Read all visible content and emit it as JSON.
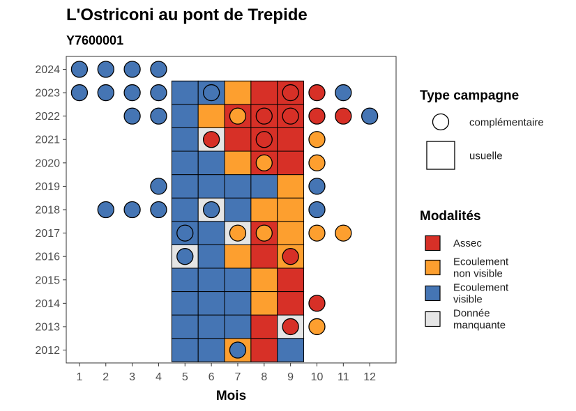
{
  "title": "L'Ostriconi au pont de Trepide",
  "subtitle": "Y7600001",
  "chart_data": {
    "type": "heatmap",
    "xlabel": "Mois",
    "x_ticks": [
      1,
      2,
      3,
      4,
      5,
      6,
      7,
      8,
      9,
      10,
      11,
      12
    ],
    "y_ticks": [
      2012,
      2013,
      2014,
      2015,
      2016,
      2017,
      2018,
      2019,
      2020,
      2021,
      2022,
      2023,
      2024
    ],
    "xlim": [
      0.5,
      13.0
    ],
    "ylim": [
      2011.45,
      2024.55
    ],
    "grid": false,
    "legend_position": "right",
    "categories": {
      "A": {
        "label": "Assec",
        "color": "#d73027"
      },
      "N": {
        "label": "Ecoulement non visible",
        "color": "#fd9f2f"
      },
      "V": {
        "label": "Ecoulement visible",
        "color": "#4575b4"
      },
      "M": {
        "label": "Donnée manquante",
        "color": "#e5e5e5"
      }
    },
    "campaign_types": {
      "complementaire": {
        "label": "complémentaire",
        "shape": "circle"
      },
      "usuelle": {
        "label": "usuelle",
        "shape": "square"
      }
    },
    "usuelle": [
      {
        "year": 2012,
        "months": {
          "5": "V",
          "6": "V",
          "7": "N",
          "8": "A",
          "9": "V"
        }
      },
      {
        "year": 2013,
        "months": {
          "5": "V",
          "6": "V",
          "7": "V",
          "8": "A",
          "9": "M"
        }
      },
      {
        "year": 2014,
        "months": {
          "5": "V",
          "6": "V",
          "7": "V",
          "8": "N",
          "9": "A"
        }
      },
      {
        "year": 2015,
        "months": {
          "5": "V",
          "6": "V",
          "7": "V",
          "8": "N",
          "9": "A"
        }
      },
      {
        "year": 2016,
        "months": {
          "5": "M",
          "6": "V",
          "7": "N",
          "8": "A",
          "9": "N"
        }
      },
      {
        "year": 2017,
        "months": {
          "5": "V",
          "6": "V",
          "7": "M",
          "8": "A",
          "9": "N"
        }
      },
      {
        "year": 2018,
        "months": {
          "5": "V",
          "6": "M",
          "7": "V",
          "8": "N",
          "9": "N"
        }
      },
      {
        "year": 2019,
        "months": {
          "5": "V",
          "6": "V",
          "7": "V",
          "8": "V",
          "9": "N"
        }
      },
      {
        "year": 2020,
        "months": {
          "5": "V",
          "6": "V",
          "7": "N",
          "8": "A",
          "9": "A"
        }
      },
      {
        "year": 2021,
        "months": {
          "5": "V",
          "6": "M",
          "7": "A",
          "8": "A",
          "9": "A"
        }
      },
      {
        "year": 2022,
        "months": {
          "5": "V",
          "6": "N",
          "7": "A",
          "8": "A",
          "9": "A"
        }
      },
      {
        "year": 2023,
        "months": {
          "5": "V",
          "6": "V",
          "7": "N",
          "8": "A",
          "9": "A"
        }
      }
    ],
    "complementaire": [
      {
        "year": 2024,
        "months": {
          "1": "V",
          "2": "V",
          "3": "V",
          "4": "V"
        }
      },
      {
        "year": 2023,
        "months": {
          "1": "V",
          "2": "V",
          "3": "V",
          "4": "V",
          "6": "V",
          "9": "A",
          "10": "A",
          "11": "V"
        }
      },
      {
        "year": 2022,
        "months": {
          "3": "V",
          "4": "V",
          "7": "N",
          "8": "A",
          "9": "A",
          "10": "A",
          "11": "A",
          "12": "V"
        }
      },
      {
        "year": 2021,
        "months": {
          "6": "A",
          "8": "A",
          "10": "N"
        }
      },
      {
        "year": 2020,
        "months": {
          "8": "N",
          "10": "N"
        }
      },
      {
        "year": 2019,
        "months": {
          "4": "V",
          "10": "V"
        }
      },
      {
        "year": 2018,
        "months": {
          "2": "V",
          "3": "V",
          "4": "V",
          "6": "V",
          "10": "V"
        }
      },
      {
        "year": 2017,
        "months": {
          "5": "V",
          "7": "N",
          "8": "N",
          "10": "N",
          "11": "N"
        }
      },
      {
        "year": 2016,
        "months": {
          "5": "V",
          "9": "A"
        }
      },
      {
        "year": 2014,
        "months": {
          "10": "A"
        }
      },
      {
        "year": 2013,
        "months": {
          "9": "A",
          "10": "N"
        }
      },
      {
        "year": 2012,
        "months": {
          "7": "V"
        }
      }
    ]
  },
  "legend": {
    "type_title": "Type campagne",
    "type_items": [
      {
        "shape": "circle",
        "label": "complémentaire"
      },
      {
        "shape": "square",
        "label": "usuelle"
      }
    ],
    "mod_title": "Modalités",
    "mod_items": [
      {
        "key": "A",
        "lines": [
          "Assec"
        ]
      },
      {
        "key": "N",
        "lines": [
          "Ecoulement",
          "non visible"
        ]
      },
      {
        "key": "V",
        "lines": [
          "Ecoulement",
          "visible"
        ]
      },
      {
        "key": "M",
        "lines": [
          "Donnée",
          "manquante"
        ]
      }
    ]
  }
}
